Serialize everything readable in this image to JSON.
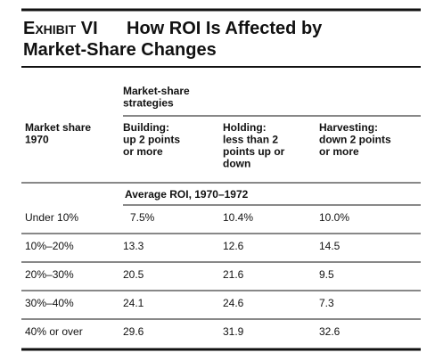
{
  "header": {
    "exhibit": "Exhibit VI",
    "title_lines": [
      "How ROI Is Affected by",
      "Market-Share Changes"
    ]
  },
  "table": {
    "group_header_lines": [
      "Market-share",
      "strategies"
    ],
    "row_header_lines": [
      "Market share",
      "1970"
    ],
    "columns": [
      [
        "Building:",
        "up 2 points",
        "or more"
      ],
      [
        "Holding:",
        "less than 2",
        "points up or",
        "down"
      ],
      [
        "Harvesting:",
        "down 2 points",
        "or more"
      ]
    ],
    "subheader": "Average ROI, 1970–1972",
    "rows": [
      [
        "Under 10%",
        "7.5%",
        "10.4%",
        "10.0%"
      ],
      [
        "10%–20%",
        "13.3",
        "12.6",
        "14.5"
      ],
      [
        "20%–30%",
        "20.5",
        "21.6",
        "9.5"
      ],
      [
        "30%–40%",
        "24.1",
        "24.6",
        "7.3"
      ],
      [
        "40% or over",
        "29.6",
        "31.9",
        "32.6"
      ]
    ]
  }
}
